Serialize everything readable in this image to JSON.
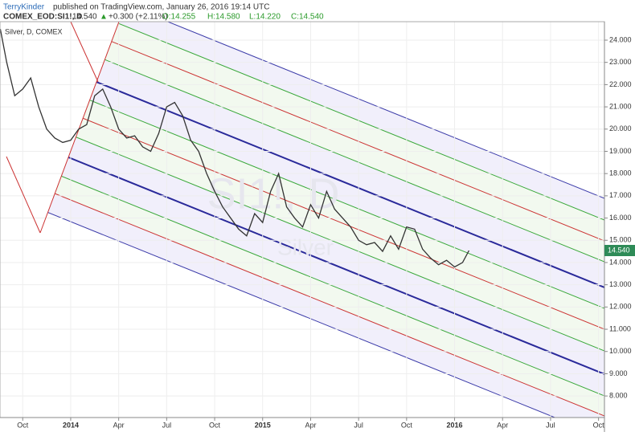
{
  "header": {
    "author": "TerryKinder",
    "published": "published on TradingView.com, January 26, 2016 19:14 UTC",
    "symbol": "COMEX_EOD:SI1!, D",
    "price": "14.540",
    "change": "+0.300 (+2.11%)",
    "open": "O:14.255",
    "high": "H:14.580",
    "low": "L:14.220",
    "close": "C:14.540"
  },
  "chart_data": {
    "type": "line",
    "watermark": [
      "SI1!, D",
      "Silver"
    ],
    "x": [
      -4.4,
      -4,
      -3.5,
      -3,
      -2.5,
      -2,
      -1.5,
      -1,
      -0.5,
      0,
      0.5,
      1,
      1.5,
      2,
      2.5,
      3,
      3.5,
      4,
      4.5,
      5,
      5.5,
      6,
      6.5,
      7,
      7.5,
      8,
      8.5,
      9,
      9.5,
      10,
      10.5,
      11,
      11.5,
      12,
      12.5,
      13,
      13.5,
      14,
      14.5,
      15,
      15.5,
      16,
      16.5,
      17,
      17.5,
      18,
      18.5,
      19,
      19.5,
      20,
      20.5,
      21,
      21.5,
      22,
      22.5,
      23,
      23.5,
      24,
      24.5,
      24.9
    ],
    "series": [
      {
        "name": "Silver, D, COMEX",
        "color": "#333333",
        "values": [
          24.5,
          23.0,
          21.5,
          21.8,
          22.3,
          21.0,
          20.0,
          19.6,
          19.4,
          19.5,
          20.0,
          20.2,
          21.5,
          21.8,
          21.0,
          20.0,
          19.6,
          19.7,
          19.2,
          19.0,
          19.8,
          21.0,
          21.2,
          20.6,
          19.5,
          19.0,
          18.0,
          17.2,
          16.5,
          16.0,
          15.5,
          15.2,
          16.2,
          15.8,
          17.2,
          18.0,
          16.5,
          16.0,
          15.6,
          16.6,
          16.0,
          17.2,
          16.4,
          16.0,
          15.6,
          15.0,
          14.8,
          14.9,
          14.5,
          15.2,
          14.6,
          15.6,
          15.5,
          14.6,
          14.2,
          13.9,
          14.1,
          13.8,
          14.0,
          14.54
        ]
      }
    ],
    "xlim": [
      -4.42,
      33.37
    ],
    "xticks": [
      {
        "value": -3,
        "label": "Oct"
      },
      {
        "value": 0,
        "label": "2014"
      },
      {
        "value": 3,
        "label": "Apr"
      },
      {
        "value": 6,
        "label": "Jul"
      },
      {
        "value": 9,
        "label": "Oct"
      },
      {
        "value": 12,
        "label": "2015"
      },
      {
        "value": 15,
        "label": "Apr"
      },
      {
        "value": 18,
        "label": "Jul"
      },
      {
        "value": 21,
        "label": "Oct"
      },
      {
        "value": 24,
        "label": "2016"
      },
      {
        "value": 27,
        "label": "Apr"
      },
      {
        "value": 30,
        "label": "Jul"
      },
      {
        "value": 33,
        "label": "Oct"
      }
    ],
    "ylim": [
      7.03,
      24.83
    ],
    "yticks": [
      {
        "value": 8,
        "label": "8.000"
      },
      {
        "value": 9,
        "label": "9.000"
      },
      {
        "value": 10,
        "label": "10.000"
      },
      {
        "value": 11,
        "label": "11.000"
      },
      {
        "value": 12,
        "label": "12.000"
      },
      {
        "value": 13,
        "label": "13.000"
      },
      {
        "value": 14,
        "label": "14.000"
      },
      {
        "value": 15,
        "label": "15.000"
      },
      {
        "value": 16,
        "label": "16.000"
      },
      {
        "value": 17,
        "label": "17.000"
      },
      {
        "value": 18,
        "label": "18.000"
      },
      {
        "value": 19,
        "label": "19.000"
      },
      {
        "value": 20,
        "label": "20.000"
      },
      {
        "value": 21,
        "label": "21.000"
      },
      {
        "value": 22,
        "label": "22.000"
      },
      {
        "value": 23,
        "label": "23.000"
      },
      {
        "value": 24,
        "label": "24.000"
      }
    ],
    "grid": true
  }
}
